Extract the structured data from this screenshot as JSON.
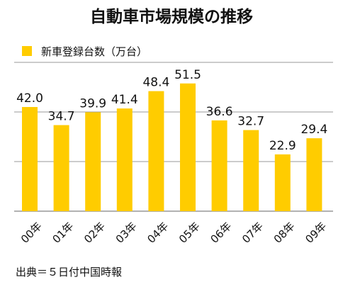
{
  "title": "自動車市場規模の推移",
  "source": "出典＝５日付中国時報",
  "chart_data": {
    "type": "bar",
    "title": "自動車市場規模の推移",
    "categories": [
      "00年",
      "01年",
      "02年",
      "03年",
      "04年",
      "05年",
      "06年",
      "07年",
      "08年",
      "09年"
    ],
    "series": [
      {
        "name": "新車登録台数（万台）",
        "values": [
          42.0,
          34.7,
          39.9,
          41.4,
          48.4,
          51.5,
          36.6,
          32.7,
          22.9,
          29.4
        ],
        "labels": [
          "42.0",
          "34.7",
          "39.9",
          "41.4",
          "48.4",
          "51.5",
          "36.6",
          "32.7",
          "22.9",
          "29.4"
        ]
      }
    ],
    "xlabel": "",
    "ylabel": "",
    "ylim": [
      0,
      60
    ],
    "grid": true,
    "legend_position": "top-left",
    "colors": {
      "bar": "#FFCC00",
      "grid": "#999999",
      "text": "#111111"
    }
  }
}
